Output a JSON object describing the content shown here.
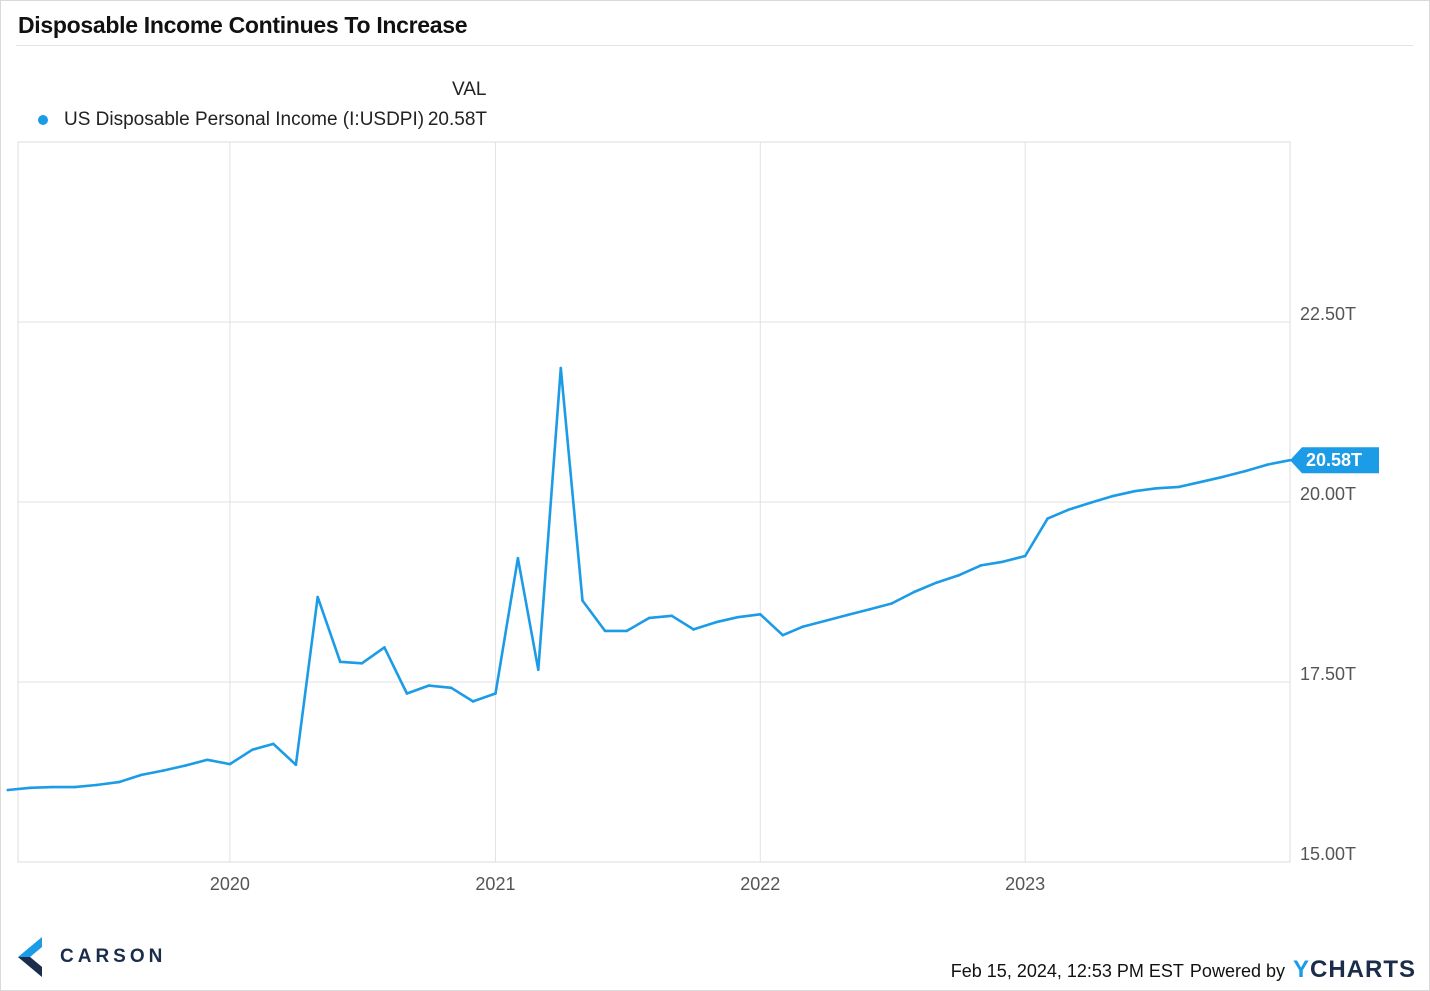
{
  "title": "Disposable Income Continues To Increase",
  "legend": {
    "column_header": "VAL",
    "items": [
      {
        "name": "US Disposable Personal Income (I:USDPI)",
        "value": "20.58T",
        "color": "#1c9be6"
      }
    ]
  },
  "chart_data": {
    "type": "line",
    "title": "Disposable Income Continues To Increase",
    "x_type": "date",
    "xlim": [
      "2019-03-15",
      "2024-01-01"
    ],
    "ylim": [
      15.0,
      25.0
    ],
    "y_unit": "T",
    "y_ticks": [
      15.0,
      17.5,
      20.0,
      22.5
    ],
    "y_tick_labels": [
      "15.00T",
      "17.50T",
      "20.00T",
      "22.50T"
    ],
    "x_ticks": [
      "2020-01-01",
      "2021-01-01",
      "2022-01-01",
      "2023-01-01"
    ],
    "x_tick_labels": [
      "2020",
      "2021",
      "2022",
      "2023"
    ],
    "grid": true,
    "legend_position": "top-left",
    "y_axis_position": "right",
    "last_value_label": "20.58T",
    "series": [
      {
        "name": "US Disposable Personal Income (I:USDPI)",
        "color": "#1c9be6",
        "points": [
          [
            "2019-03-01",
            16.0
          ],
          [
            "2019-04-01",
            16.03
          ],
          [
            "2019-05-01",
            16.04
          ],
          [
            "2019-06-01",
            16.04
          ],
          [
            "2019-07-01",
            16.07
          ],
          [
            "2019-08-01",
            16.11
          ],
          [
            "2019-09-01",
            16.21
          ],
          [
            "2019-10-01",
            16.27
          ],
          [
            "2019-11-01",
            16.34
          ],
          [
            "2019-12-01",
            16.42
          ],
          [
            "2020-01-01",
            16.36
          ],
          [
            "2020-02-01",
            16.56
          ],
          [
            "2020-03-01",
            16.64
          ],
          [
            "2020-04-01",
            16.35
          ],
          [
            "2020-05-01",
            18.68
          ],
          [
            "2020-06-01",
            17.78
          ],
          [
            "2020-07-01",
            17.76
          ],
          [
            "2020-08-01",
            17.98
          ],
          [
            "2020-09-01",
            17.34
          ],
          [
            "2020-10-01",
            17.45
          ],
          [
            "2020-11-01",
            17.42
          ],
          [
            "2020-12-01",
            17.23
          ],
          [
            "2021-01-01",
            17.34
          ],
          [
            "2021-02-01",
            19.22
          ],
          [
            "2021-03-01",
            17.67
          ],
          [
            "2021-04-01",
            21.86
          ],
          [
            "2021-05-01",
            18.63
          ],
          [
            "2021-06-01",
            18.21
          ],
          [
            "2021-07-01",
            18.21
          ],
          [
            "2021-08-01",
            18.39
          ],
          [
            "2021-09-01",
            18.42
          ],
          [
            "2021-10-01",
            18.23
          ],
          [
            "2021-11-01",
            18.33
          ],
          [
            "2021-12-01",
            18.4
          ],
          [
            "2022-01-01",
            18.44
          ],
          [
            "2022-02-01",
            18.15
          ],
          [
            "2022-03-01",
            18.27
          ],
          [
            "2022-04-01",
            18.35
          ],
          [
            "2022-05-01",
            18.43
          ],
          [
            "2022-06-01",
            18.51
          ],
          [
            "2022-07-01",
            18.59
          ],
          [
            "2022-08-01",
            18.75
          ],
          [
            "2022-09-01",
            18.88
          ],
          [
            "2022-10-01",
            18.98
          ],
          [
            "2022-11-01",
            19.12
          ],
          [
            "2022-12-01",
            19.17
          ],
          [
            "2023-01-01",
            19.25
          ],
          [
            "2023-02-01",
            19.77
          ],
          [
            "2023-03-01",
            19.89
          ],
          [
            "2023-04-01",
            19.99
          ],
          [
            "2023-05-01",
            20.08
          ],
          [
            "2023-06-01",
            20.15
          ],
          [
            "2023-07-01",
            20.19
          ],
          [
            "2023-08-01",
            20.21
          ],
          [
            "2023-09-01",
            20.28
          ],
          [
            "2023-10-01",
            20.35
          ],
          [
            "2023-11-01",
            20.43
          ],
          [
            "2023-12-01",
            20.52
          ],
          [
            "2024-01-01",
            20.58
          ]
        ]
      }
    ]
  },
  "footer": {
    "brand": "CARSON",
    "timestamp": "Feb 15, 2024, 12:53 PM EST",
    "powered_by": "Powered by",
    "provider_y": "Y",
    "provider_rest": "CHARTS"
  }
}
